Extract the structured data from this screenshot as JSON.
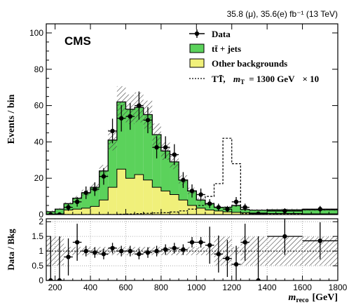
{
  "header": {
    "lumi_text": "35.8 (μ), 35.6(e) fb⁻¹ (13 TeV)",
    "experiment": "CMS"
  },
  "legend": {
    "data": "Data",
    "ttbar": "tt̄ + jets",
    "other": "Other backgrounds",
    "signal_name": "TT̄,",
    "signal_mass_label": "m",
    "signal_mass_sub": "T",
    "signal_mass_value": "= 1300 GeV",
    "signal_scale": "× 10"
  },
  "axes": {
    "top_ylabel": "Events / bin",
    "ratio_ylabel": "Data / Bkg",
    "xlabel_main": "m",
    "xlabel_sub": "reco",
    "xlabel_unit": "[GeV]"
  },
  "colors": {
    "ttbar": "#5bd25b",
    "other": "#f0f07a",
    "data": "#000000",
    "signal": "#000000",
    "uncertainty_hatch": "#555555"
  },
  "chart_data": {
    "type": "bar",
    "subtype": "stacked-histogram-with-ratio",
    "xlim": [
      150,
      1800
    ],
    "ylim_main": [
      0,
      105
    ],
    "ylim_ratio": [
      0,
      2.1
    ],
    "grid_ratio": true,
    "legend_position": "top-right",
    "x_ticks": [
      200,
      400,
      600,
      800,
      1000,
      1200,
      1400,
      1600,
      1800
    ],
    "y_ticks_main": [
      0,
      20,
      40,
      60,
      80,
      100
    ],
    "y_ticks_ratio": [
      0,
      0.5,
      1,
      1.5,
      2
    ],
    "bin_edges": [
      150,
      200,
      250,
      300,
      350,
      400,
      450,
      500,
      550,
      600,
      650,
      700,
      750,
      800,
      850,
      900,
      950,
      1000,
      1050,
      1100,
      1150,
      1200,
      1250,
      1300,
      1400,
      1600,
      1800
    ],
    "series": [
      {
        "name": "Other backgrounds",
        "values": [
          0.3,
          0.4,
          2.5,
          3.0,
          3.5,
          4.5,
          8,
          15,
          25,
          20,
          22,
          19,
          15,
          13,
          11,
          8,
          5,
          3.5,
          2.5,
          2,
          1.5,
          1.2,
          1.0,
          0.8,
          0.6,
          0.4
        ]
      },
      {
        "name": "tt̄ + jets",
        "values": [
          1.3,
          2.6,
          3.5,
          6.0,
          8.5,
          10.5,
          16,
          26,
          37,
          38,
          37,
          36,
          29,
          22,
          18,
          11,
          8,
          4.5,
          3.5,
          2.0,
          2.5,
          3.8,
          1.8,
          1.6,
          2.0,
          2.2
        ]
      },
      {
        "name": "TT̄, m_T = 1300 GeV × 10",
        "values": [
          0,
          0,
          0,
          0,
          0,
          0,
          0,
          0,
          0.2,
          0.3,
          0.5,
          0.7,
          0.9,
          1.0,
          1.4,
          2.0,
          3.0,
          5.0,
          10,
          17,
          42,
          28,
          0.5,
          0.4,
          0.3,
          0.2
        ]
      }
    ],
    "data_points": {
      "x": [
        175,
        225,
        275,
        325,
        375,
        425,
        475,
        525,
        575,
        625,
        675,
        725,
        775,
        825,
        875,
        925,
        975,
        1025,
        1075,
        1125,
        1175,
        1225,
        1275,
        1350,
        1500,
        1700
      ],
      "y": [
        0,
        0,
        4,
        7,
        12,
        14,
        21,
        46,
        53,
        54,
        60,
        52,
        37,
        37,
        33,
        19,
        13,
        11,
        6,
        4,
        3,
        7,
        4,
        0.5,
        2,
        3
      ]
    },
    "ratio": {
      "x": [
        175,
        225,
        275,
        325,
        375,
        425,
        475,
        525,
        575,
        625,
        675,
        725,
        775,
        825,
        875,
        925,
        975,
        1025,
        1075,
        1125,
        1175,
        1225,
        1275,
        1350,
        1500,
        1700
      ],
      "y": [
        0,
        0,
        0.8,
        1.3,
        1.0,
        0.95,
        0.9,
        1.1,
        1.0,
        1.0,
        0.9,
        0.95,
        1.0,
        1.05,
        1.1,
        1.05,
        1.3,
        1.3,
        1.2,
        0.9,
        0.75,
        0.55,
        1.3,
        0,
        1.5,
        1.35
      ]
    }
  }
}
